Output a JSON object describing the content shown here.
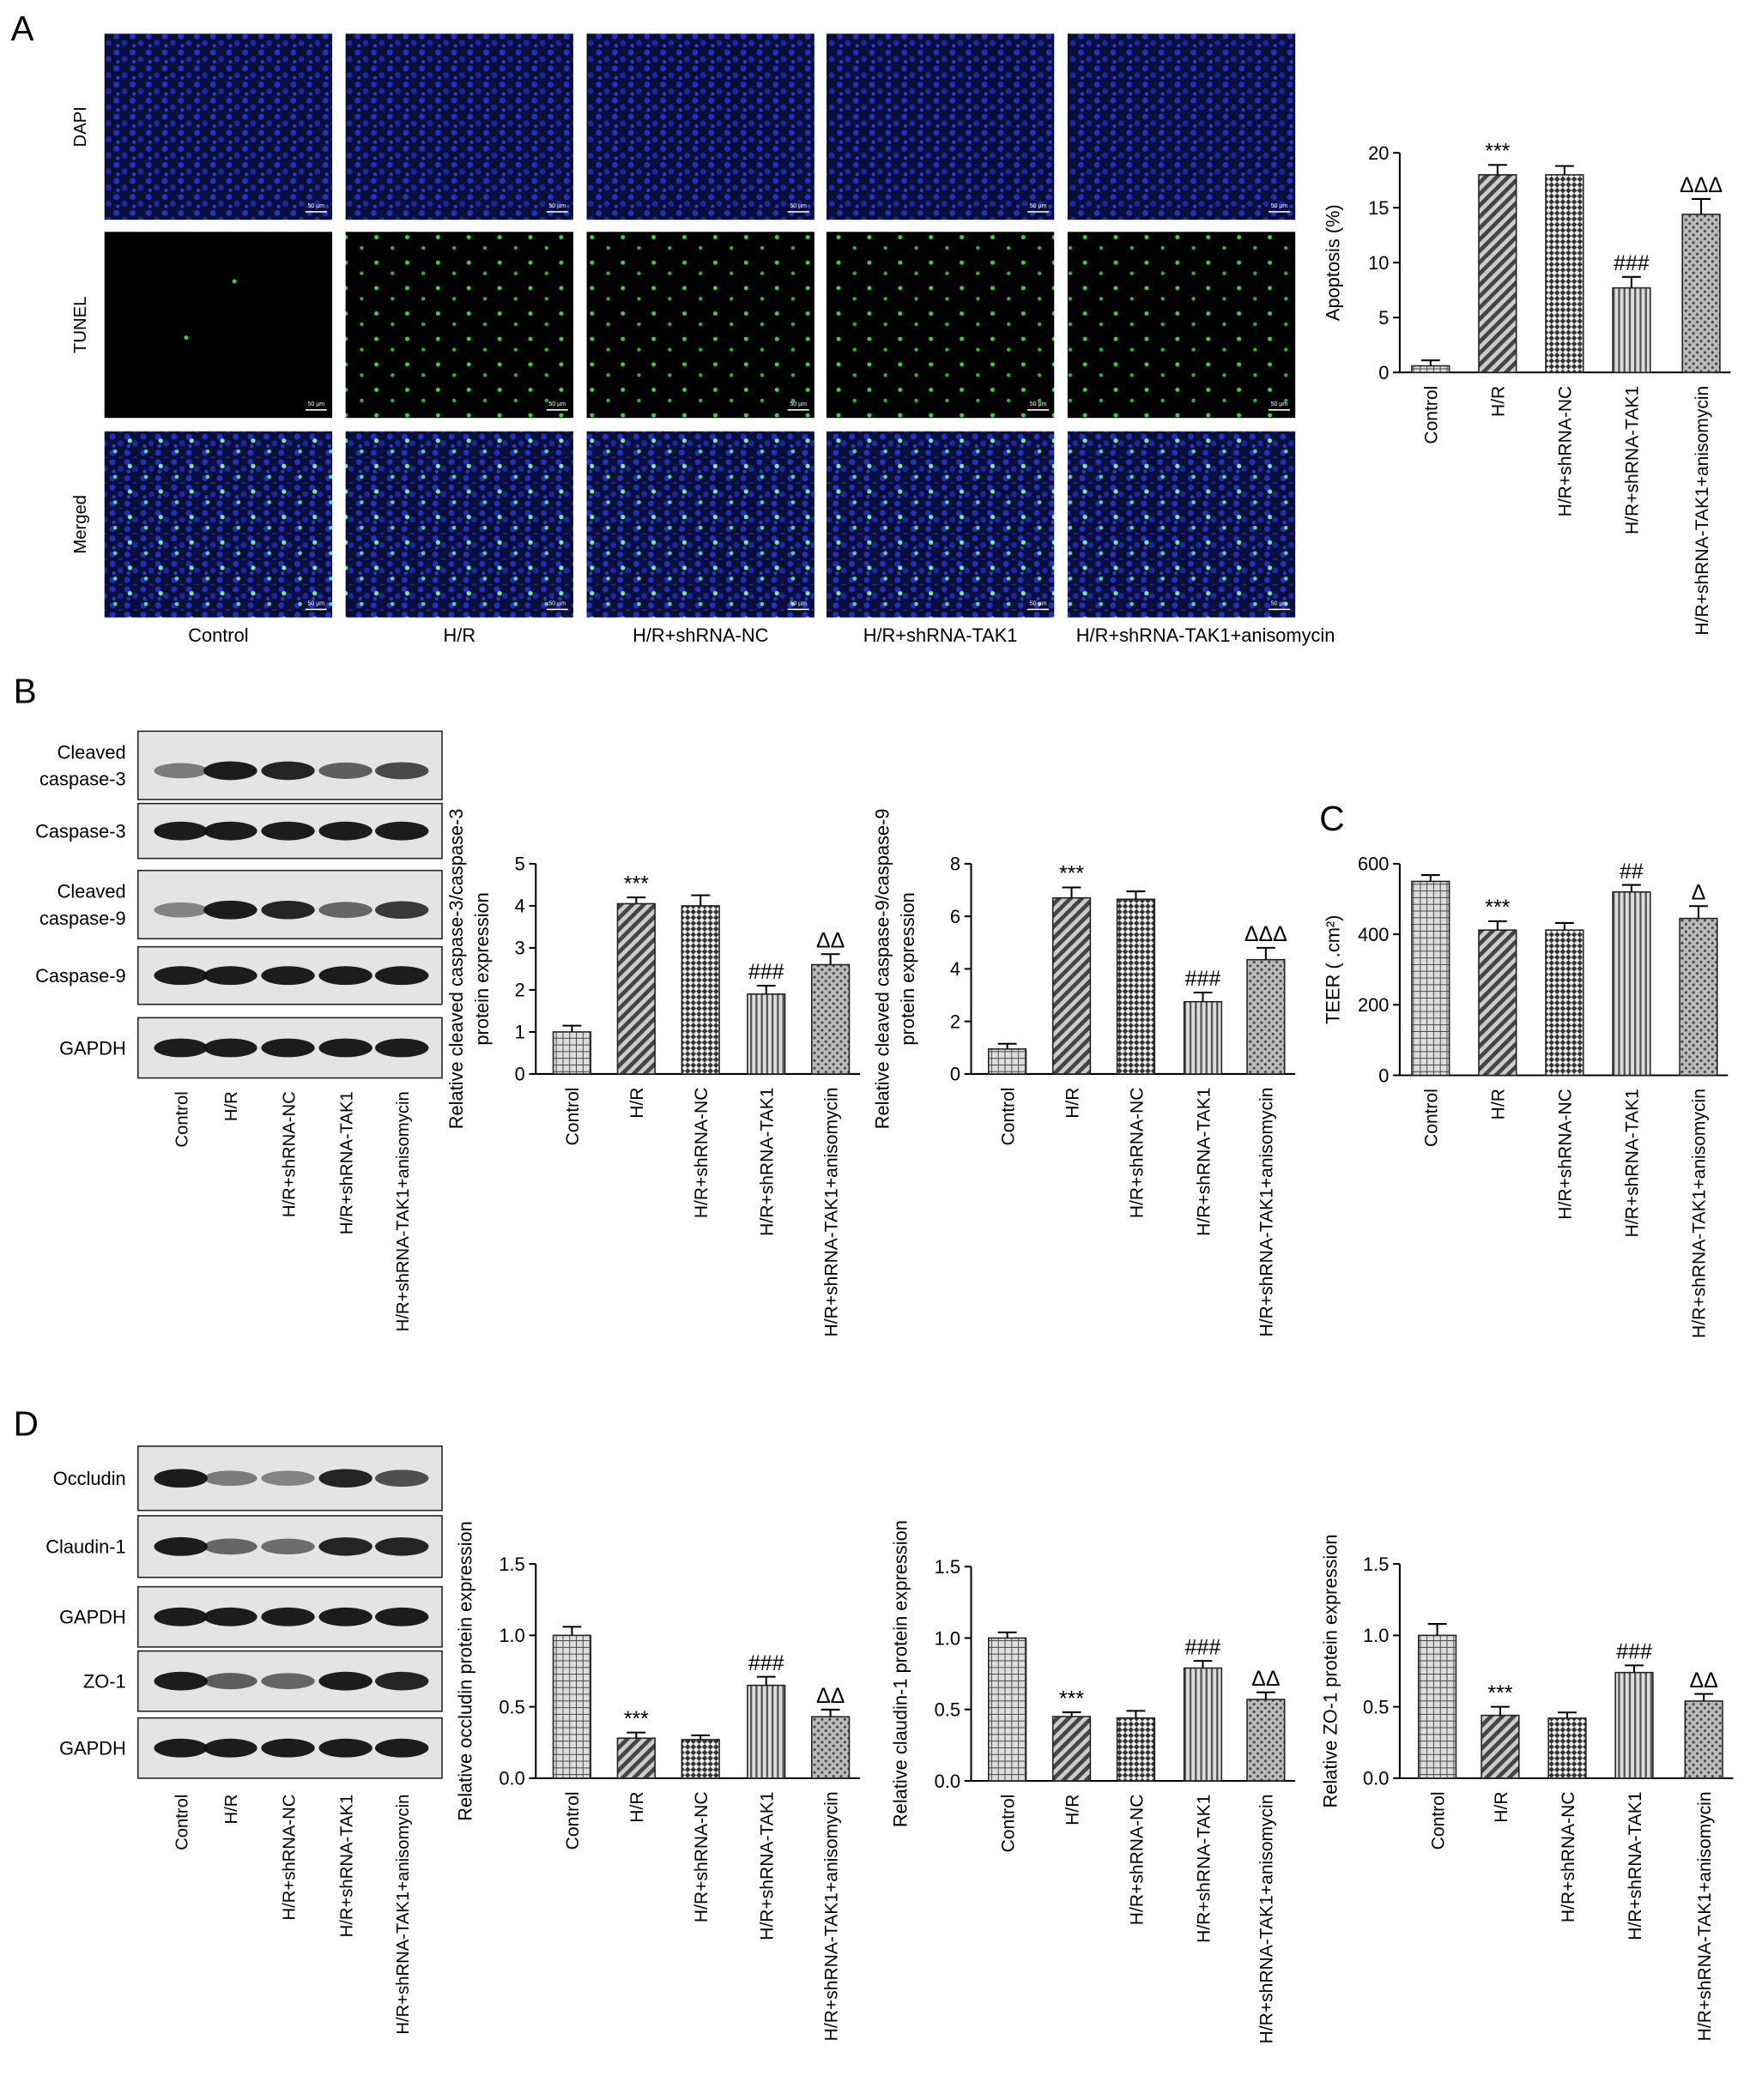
{
  "panel_labels": [
    "A",
    "B",
    "C",
    "D"
  ],
  "microscopy": {
    "rows": [
      "DAPI",
      "TUNEL",
      "Merged"
    ],
    "columns": [
      "Control",
      "H/R",
      "H/R+shRNA-NC",
      "H/R+shRNA-TAK1",
      "H/R+shRNA-TAK1+anisomycin"
    ],
    "scale_bar": "50 µm"
  },
  "blot_b": {
    "rows": [
      [
        "Cleaved",
        "caspase-3"
      ],
      [
        "Caspase-3"
      ],
      [
        "Cleaved",
        "caspase-9"
      ],
      [
        "Caspase-9"
      ],
      [
        "GAPDH"
      ]
    ],
    "lanes": [
      "Control",
      "H/R",
      "H/R+shRNA-NC",
      "H/R+shRNA-TAK1",
      "H/R+shRNA-TAK1+anisomycin"
    ]
  },
  "blot_d": {
    "rows": [
      [
        "Occludin"
      ],
      [
        "Claudin-1"
      ],
      [
        "GAPDH"
      ],
      [
        "ZO-1"
      ],
      [
        "GAPDH"
      ]
    ],
    "lanes": [
      "Control",
      "H/R",
      "H/R+shRNA-NC",
      "H/R+shRNA-TAK1",
      "H/R+shRNA-TAK1+anisomycin"
    ]
  },
  "chart_data": [
    {
      "type": "bar",
      "ylabel": [
        "Apoptosis (%)"
      ],
      "categories": [
        "Control",
        "H/R",
        "H/R+shRNA-NC",
        "H/R+shRNA-TAK1",
        "H/R+shRNA-TAK1+anisomycin"
      ],
      "values": [
        0.6,
        18,
        18,
        7.7,
        14.4
      ],
      "errors": [
        0.5,
        0.9,
        0.8,
        1.0,
        1.4
      ],
      "annotations": [
        null,
        "***",
        null,
        "###",
        "ΔΔΔ"
      ],
      "ylim": [
        0,
        20
      ],
      "yticks": [
        0,
        5,
        10,
        15,
        20
      ]
    },
    {
      "type": "bar",
      "ylabel": [
        "Relative cleaved caspase-3/caspase-3",
        "protein expression"
      ],
      "categories": [
        "Control",
        "H/R",
        "H/R+shRNA-NC",
        "H/R+shRNA-TAK1",
        "H/R+shRNA-TAK1+anisomycin"
      ],
      "values": [
        1.0,
        4.05,
        4.0,
        1.9,
        2.6
      ],
      "errors": [
        0.15,
        0.15,
        0.25,
        0.2,
        0.25
      ],
      "annotations": [
        null,
        "***",
        null,
        "###",
        "ΔΔ"
      ],
      "ylim": [
        0,
        5
      ],
      "yticks": [
        0,
        1,
        2,
        3,
        4,
        5
      ]
    },
    {
      "type": "bar",
      "ylabel": [
        "Relative cleaved caspase-9/caspase-9",
        "protein expression"
      ],
      "categories": [
        "Control",
        "H/R",
        "H/R+shRNA-NC",
        "H/R+shRNA-TAK1",
        "H/R+shRNA-TAK1+anisomycin"
      ],
      "values": [
        0.95,
        6.7,
        6.65,
        2.75,
        4.35
      ],
      "errors": [
        0.2,
        0.4,
        0.3,
        0.35,
        0.45
      ],
      "annotations": [
        null,
        "***",
        null,
        "###",
        "ΔΔΔ"
      ],
      "ylim": [
        0,
        8
      ],
      "yticks": [
        0,
        2,
        4,
        6,
        8
      ]
    },
    {
      "type": "bar",
      "ylabel": [
        "TEER ( .cm²)"
      ],
      "categories": [
        "Control",
        "H/R",
        "H/R+shRNA-NC",
        "H/R+shRNA-TAK1",
        "H/R+shRNA-TAK1+anisomycin"
      ],
      "values": [
        550,
        412,
        412,
        520,
        445
      ],
      "errors": [
        18,
        25,
        20,
        20,
        35
      ],
      "annotations": [
        null,
        "***",
        null,
        "##",
        "Δ"
      ],
      "ylim": [
        0,
        600
      ],
      "yticks": [
        0,
        200,
        400,
        600
      ]
    },
    {
      "type": "bar",
      "ylabel": [
        "Relative occludin protein expression"
      ],
      "categories": [
        "Control",
        "H/R",
        "H/R+shRNA-NC",
        "H/R+shRNA-TAK1",
        "H/R+shRNA-TAK1+anisomycin"
      ],
      "values": [
        1.0,
        0.28,
        0.27,
        0.65,
        0.43
      ],
      "errors": [
        0.06,
        0.04,
        0.03,
        0.06,
        0.05
      ],
      "annotations": [
        null,
        "***",
        null,
        "###",
        "ΔΔ"
      ],
      "ylim": [
        0,
        1.5
      ],
      "yticks": [
        {
          "value": 0,
          "label": "0.0"
        },
        0.5,
        {
          "value": 1,
          "label": "1.0"
        },
        1.5
      ]
    },
    {
      "type": "bar",
      "ylabel": [
        "Relative claudin-1 protein expression"
      ],
      "categories": [
        "Control",
        "H/R",
        "H/R+shRNA-NC",
        "H/R+shRNA-TAK1",
        "H/R+shRNA-TAK1+anisomycin"
      ],
      "values": [
        1.0,
        0.45,
        0.44,
        0.79,
        0.57
      ],
      "errors": [
        0.04,
        0.03,
        0.05,
        0.05,
        0.05
      ],
      "annotations": [
        null,
        "***",
        null,
        "###",
        "ΔΔ"
      ],
      "ylim": [
        0,
        1.5
      ],
      "yticks": [
        {
          "value": 0,
          "label": "0.0"
        },
        0.5,
        {
          "value": 1,
          "label": "1.0"
        },
        1.5
      ]
    },
    {
      "type": "bar",
      "ylabel": [
        "Relative ZO-1 protein expression"
      ],
      "categories": [
        "Control",
        "H/R",
        "H/R+shRNA-NC",
        "H/R+shRNA-TAK1",
        "H/R+shRNA-TAK1+anisomycin"
      ],
      "values": [
        1.0,
        0.44,
        0.42,
        0.74,
        0.54
      ],
      "errors": [
        0.08,
        0.06,
        0.04,
        0.05,
        0.05
      ],
      "annotations": [
        null,
        "***",
        null,
        "###",
        "ΔΔ"
      ],
      "ylim": [
        0,
        1.5
      ],
      "yticks": [
        {
          "value": 0,
          "label": "0.0"
        },
        0.5,
        {
          "value": 1,
          "label": "1.0"
        },
        1.5
      ]
    }
  ]
}
